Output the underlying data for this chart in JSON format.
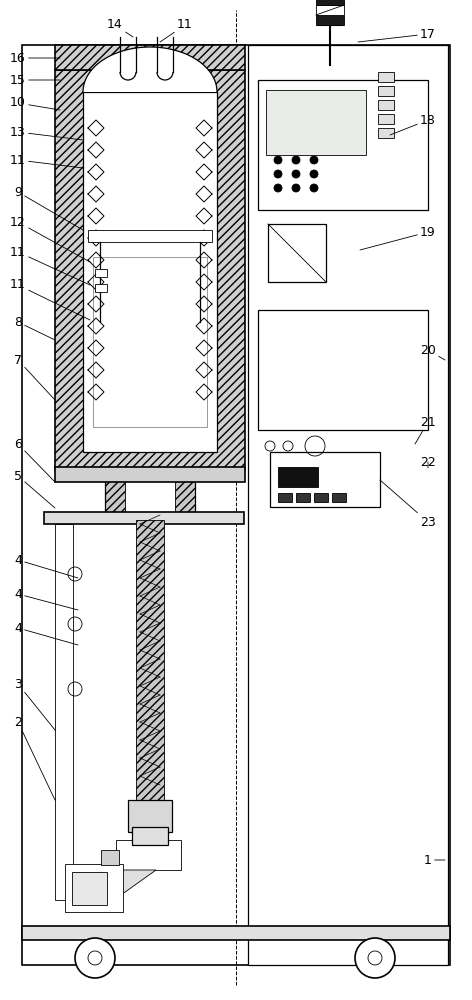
{
  "bg_color": "#ffffff",
  "fig_width": 4.72,
  "fig_height": 10.0,
  "dpi": 100,
  "lw_main": 1.2,
  "lw_med": 0.9,
  "lw_thin": 0.6
}
